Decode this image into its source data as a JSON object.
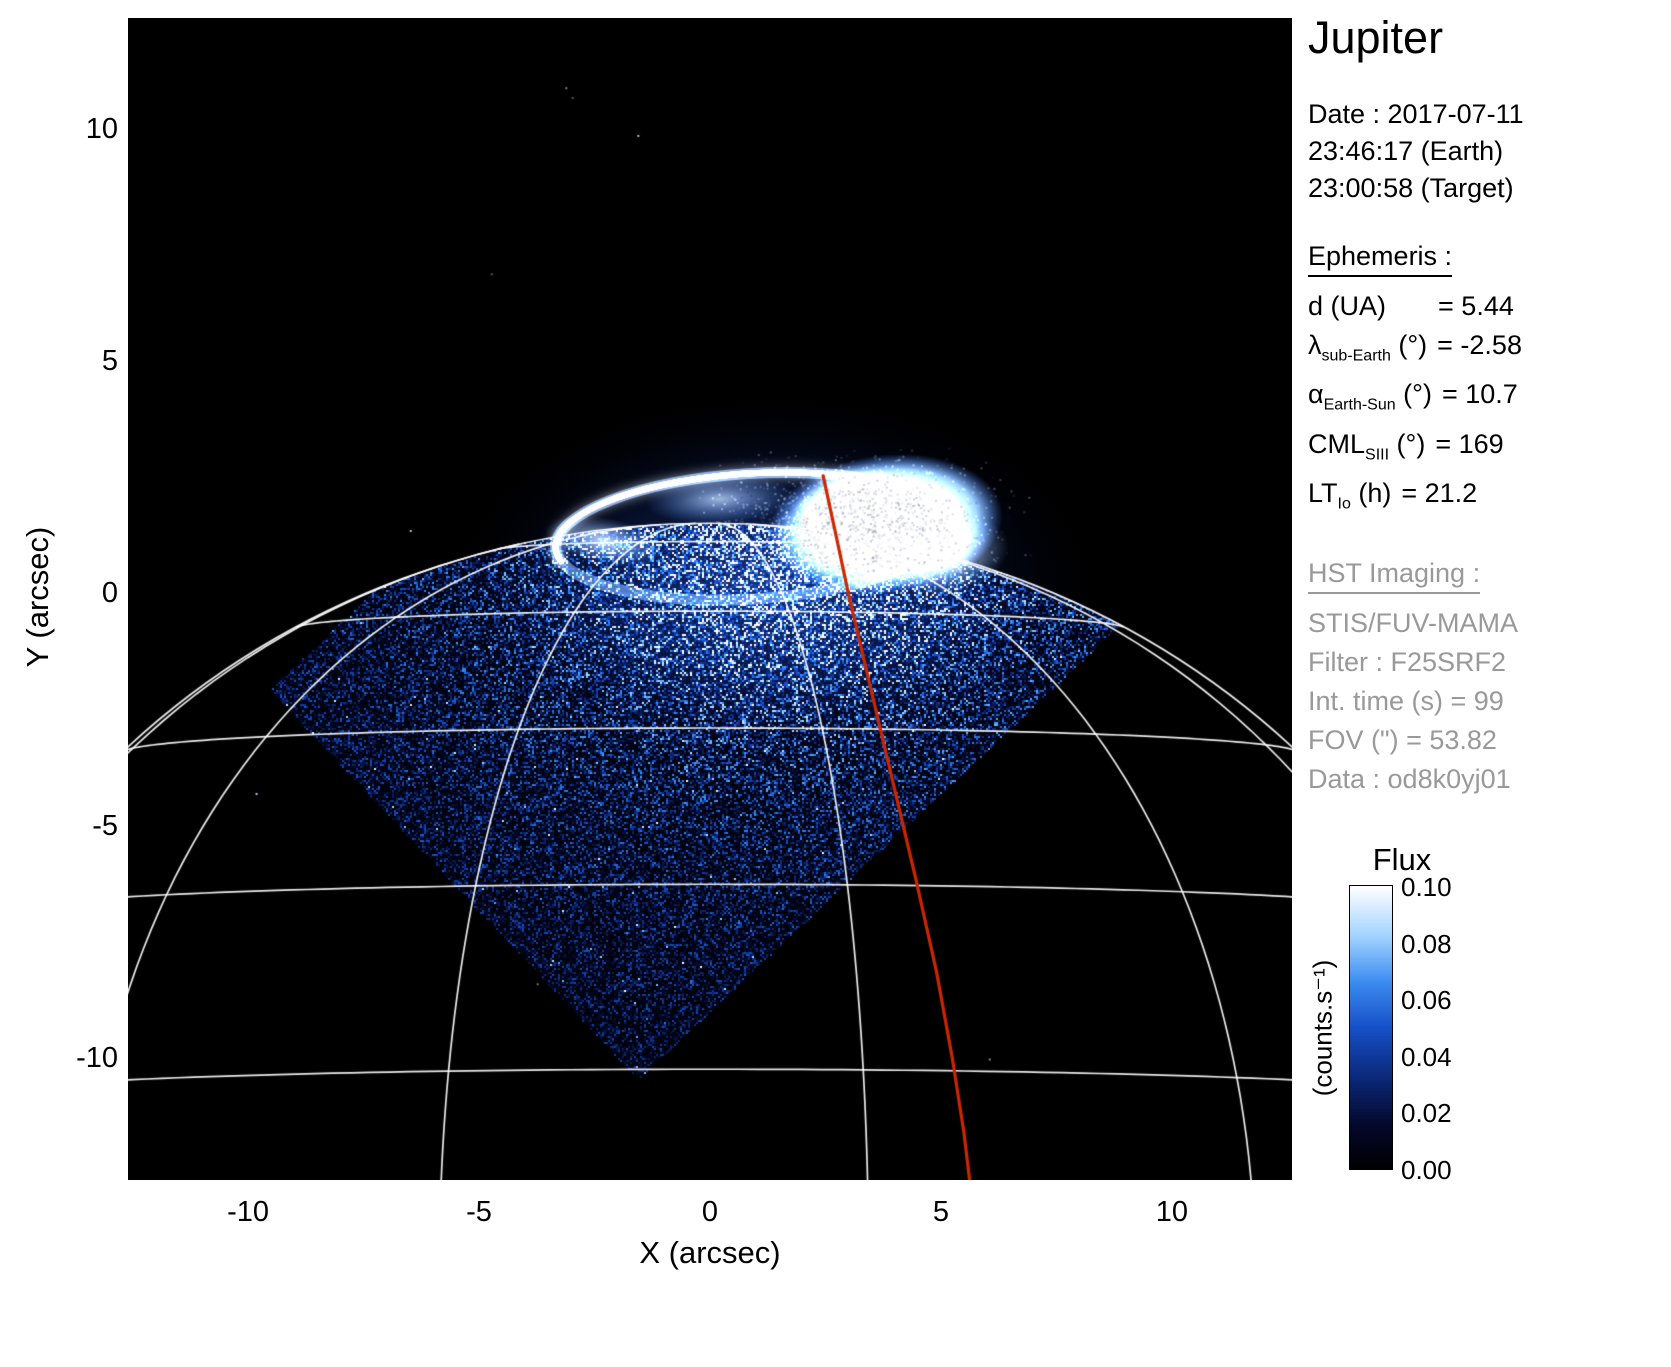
{
  "title": "Jupiter",
  "observation": {
    "date": "Date : 2017-07-11",
    "time_earth": "23:46:17 (Earth)",
    "time_target": "23:00:58 (Target)"
  },
  "ephemeris": {
    "header": "Ephemeris :",
    "rows": [
      {
        "symbol": "d",
        "sub": "",
        "unit": "(UA)",
        "value": "= 5.44"
      },
      {
        "symbol": "λ",
        "sub": "sub-Earth",
        "unit": "(°)",
        "value": "= -2.58"
      },
      {
        "symbol": "α",
        "sub": "Earth-Sun",
        "unit": "(°)",
        "value": "= 10.7"
      },
      {
        "symbol": "CML",
        "sub": "SIII",
        "unit": "(°)",
        "value": "= 169"
      },
      {
        "symbol": "LT",
        "sub": "Io",
        "unit": "(h)",
        "value": "= 21.2"
      }
    ]
  },
  "hst": {
    "header": "HST Imaging :",
    "color": "#999999",
    "lines": [
      "STIS/FUV-MAMA",
      "Filter : F25SRF2",
      "Int. time (s) = 99",
      "FOV (\") = 53.82",
      "Data : od8k0yj01"
    ]
  },
  "colorbar": {
    "title": "Flux",
    "unit": "(counts.s⁻¹)",
    "ticks": [
      "0.10",
      "0.08",
      "0.06",
      "0.04",
      "0.02",
      "0.00"
    ],
    "stops": [
      [
        0.0,
        "#000002"
      ],
      [
        0.15,
        "#04082a"
      ],
      [
        0.32,
        "#0a2878"
      ],
      [
        0.5,
        "#1650c8"
      ],
      [
        0.66,
        "#3c8cf0"
      ],
      [
        0.82,
        "#a0d2ff"
      ],
      [
        1.0,
        "#ffffff"
      ]
    ]
  },
  "chart_data": {
    "type": "heatmap",
    "title": "Jupiter",
    "xlabel": "X (arcsec)",
    "ylabel": "Y (arcsec)",
    "xlim": [
      -12.6,
      12.6
    ],
    "ylim": [
      -12.6,
      12.4
    ],
    "x_ticks": [
      -10,
      -5,
      0,
      5,
      10
    ],
    "y_ticks": [
      -10,
      -5,
      0,
      5,
      10
    ],
    "grid": false,
    "background": "#000000",
    "flux_scale": {
      "min": 0.0,
      "max": 0.1,
      "units": "counts.s-1"
    },
    "fov_diamond_arcsec": [
      [
        -9.53,
        -2.06
      ],
      [
        -1.55,
        -10.45
      ],
      [
        9.5,
        -0.1
      ],
      [
        1.52,
        8.29
      ]
    ],
    "planet": {
      "center": [
        0,
        -15.3
      ],
      "equatorial_radius_arcsec": 18.0,
      "polar_flattening": 0.935,
      "subearth_latitude_deg": -2.58,
      "cml_deg": 169
    },
    "graticule": {
      "color": "#ffffff",
      "parallels_deg": [
        0,
        15,
        30,
        45,
        60,
        75
      ],
      "meridian_step_deg": 30
    },
    "aurora": {
      "oval_center": [
        0.9,
        1.25
      ],
      "oval_rx": 4.25,
      "oval_ry": 1.35,
      "bright_patch_center": [
        3.8,
        1.5
      ],
      "core_color": "#ffffff",
      "glow_color": "#2d69eb"
    },
    "io_footprint_track": {
      "color": "#cc2600",
      "points": [
        [
          2.45,
          2.55
        ],
        [
          2.7,
          1.4
        ],
        [
          3.0,
          0.0
        ],
        [
          3.45,
          -1.9
        ],
        [
          3.95,
          -4.0
        ],
        [
          4.45,
          -6.1
        ],
        [
          4.9,
          -8.1
        ],
        [
          5.25,
          -10.0
        ],
        [
          5.5,
          -11.6
        ],
        [
          5.62,
          -12.6
        ]
      ]
    }
  }
}
